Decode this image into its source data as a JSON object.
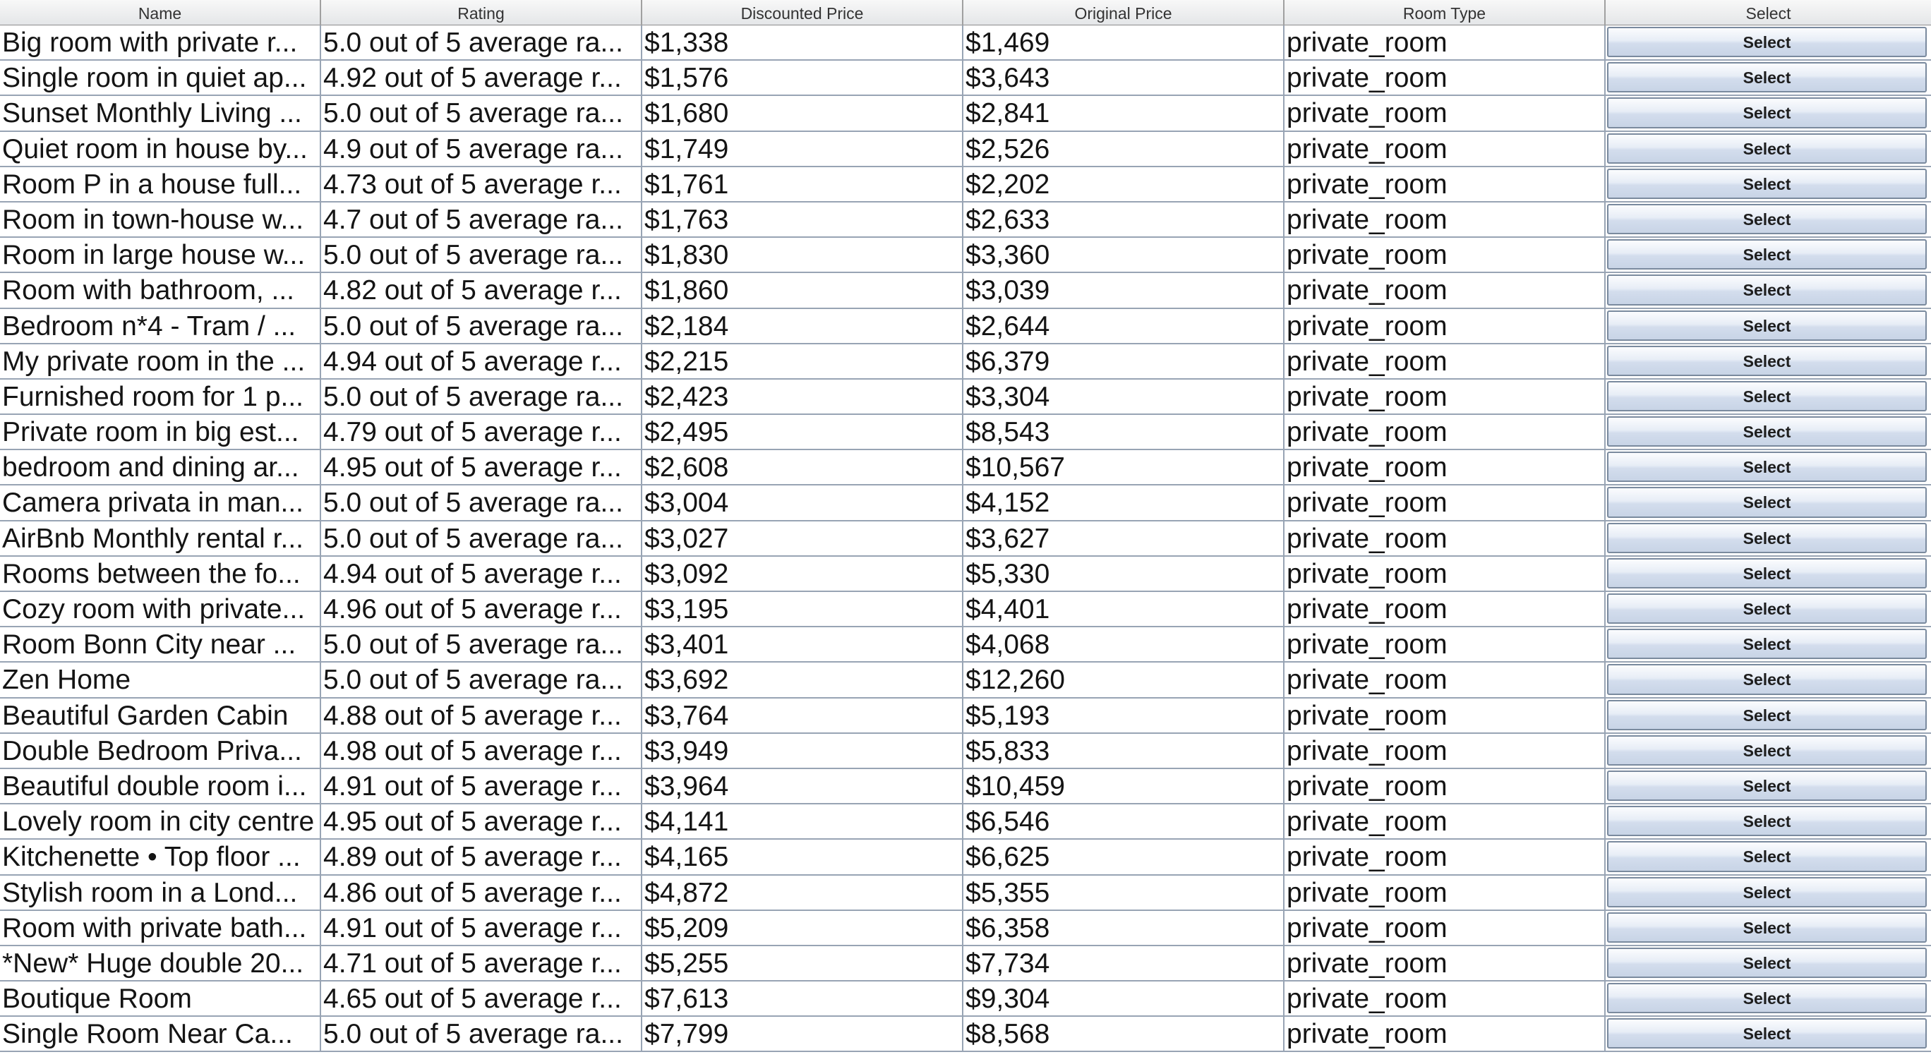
{
  "table": {
    "headers": [
      "Name",
      "Rating",
      "Discounted Price",
      "Original Price",
      "Room Type",
      "Select"
    ],
    "rows": [
      {
        "name": "Big room with private r...",
        "rating": "5.0 out of 5 average ra...",
        "discounted_price": "$1,338",
        "original_price": "$1,469",
        "room_type": "private_room",
        "select_label": "Select"
      },
      {
        "name": "Single room in quiet ap...",
        "rating": "4.92 out of 5 average r...",
        "discounted_price": "$1,576",
        "original_price": "$3,643",
        "room_type": "private_room",
        "select_label": "Select"
      },
      {
        "name": "Sunset Monthly Living ...",
        "rating": "5.0 out of 5 average ra...",
        "discounted_price": "$1,680",
        "original_price": "$2,841",
        "room_type": "private_room",
        "select_label": "Select"
      },
      {
        "name": "Quiet room in house by...",
        "rating": "4.9 out of 5 average ra...",
        "discounted_price": "$1,749",
        "original_price": "$2,526",
        "room_type": "private_room",
        "select_label": "Select"
      },
      {
        "name": "Room P in a house full...",
        "rating": "4.73 out of 5 average r...",
        "discounted_price": "$1,761",
        "original_price": "$2,202",
        "room_type": "private_room",
        "select_label": "Select"
      },
      {
        "name": "Room in town-house w...",
        "rating": "4.7 out of 5 average ra...",
        "discounted_price": "$1,763",
        "original_price": "$2,633",
        "room_type": "private_room",
        "select_label": "Select"
      },
      {
        "name": "Room in large house w...",
        "rating": "5.0 out of 5 average ra...",
        "discounted_price": "$1,830",
        "original_price": "$3,360",
        "room_type": "private_room",
        "select_label": "Select"
      },
      {
        "name": "Room  with bathroom, ...",
        "rating": "4.82 out of 5 average r...",
        "discounted_price": "$1,860",
        "original_price": "$3,039",
        "room_type": "private_room",
        "select_label": "Select"
      },
      {
        "name": "Bedroom n*4 - Tram / ...",
        "rating": "5.0 out of 5 average ra...",
        "discounted_price": "$2,184",
        "original_price": "$2,644",
        "room_type": "private_room",
        "select_label": "Select"
      },
      {
        "name": "My private room in the ...",
        "rating": "4.94 out of 5 average r...",
        "discounted_price": "$2,215",
        "original_price": "$6,379",
        "room_type": "private_room",
        "select_label": "Select"
      },
      {
        "name": "Furnished room for 1 p...",
        "rating": "5.0 out of 5 average ra...",
        "discounted_price": "$2,423",
        "original_price": "$3,304",
        "room_type": "private_room",
        "select_label": "Select"
      },
      {
        "name": "Private room in big est...",
        "rating": "4.79 out of 5 average r...",
        "discounted_price": "$2,495",
        "original_price": "$8,543",
        "room_type": "private_room",
        "select_label": "Select"
      },
      {
        "name": "bedroom and dining ar...",
        "rating": "4.95 out of 5 average r...",
        "discounted_price": "$2,608",
        "original_price": "$10,567",
        "room_type": "private_room",
        "select_label": "Select"
      },
      {
        "name": "Camera privata in man...",
        "rating": "5.0 out of 5 average ra...",
        "discounted_price": "$3,004",
        "original_price": "$4,152",
        "room_type": "private_room",
        "select_label": "Select"
      },
      {
        "name": "AirBnb Monthly rental r...",
        "rating": "5.0 out of 5 average ra...",
        "discounted_price": "$3,027",
        "original_price": "$3,627",
        "room_type": "private_room",
        "select_label": "Select"
      },
      {
        "name": "Rooms between the fo...",
        "rating": "4.94 out of 5 average r...",
        "discounted_price": "$3,092",
        "original_price": "$5,330",
        "room_type": "private_room",
        "select_label": "Select"
      },
      {
        "name": "Cozy room with private...",
        "rating": "4.96 out of 5 average r...",
        "discounted_price": "$3,195",
        "original_price": "$4,401",
        "room_type": "private_room",
        "select_label": "Select"
      },
      {
        "name": "Room Bonn City near ...",
        "rating": "5.0 out of 5 average ra...",
        "discounted_price": "$3,401",
        "original_price": "$4,068",
        "room_type": "private_room",
        "select_label": "Select"
      },
      {
        "name": "Zen Home",
        "rating": "5.0 out of 5 average ra...",
        "discounted_price": "$3,692",
        "original_price": "$12,260",
        "room_type": "private_room",
        "select_label": "Select"
      },
      {
        "name": "Beautiful Garden Cabin",
        "rating": "4.88 out of 5 average r...",
        "discounted_price": "$3,764",
        "original_price": "$5,193",
        "room_type": "private_room",
        "select_label": "Select"
      },
      {
        "name": "Double Bedroom Priva...",
        "rating": "4.98 out of 5 average r...",
        "discounted_price": "$3,949",
        "original_price": "$5,833",
        "room_type": "private_room",
        "select_label": "Select"
      },
      {
        "name": "Beautiful double room i...",
        "rating": "4.91 out of 5 average r...",
        "discounted_price": "$3,964",
        "original_price": "$10,459",
        "room_type": "private_room",
        "select_label": "Select"
      },
      {
        "name": "Lovely room in city centre",
        "rating": "4.95 out of 5 average r...",
        "discounted_price": "$4,141",
        "original_price": "$6,546",
        "room_type": "private_room",
        "select_label": "Select"
      },
      {
        "name": "Kitchenette • Top floor ...",
        "rating": "4.89 out of 5 average r...",
        "discounted_price": "$4,165",
        "original_price": "$6,625",
        "room_type": "private_room",
        "select_label": "Select"
      },
      {
        "name": "Stylish room in a Lond...",
        "rating": "4.86 out of 5 average r...",
        "discounted_price": "$4,872",
        "original_price": "$5,355",
        "room_type": "private_room",
        "select_label": "Select"
      },
      {
        "name": "Room with private bath...",
        "rating": "4.91 out of 5 average r...",
        "discounted_price": "$5,209",
        "original_price": "$6,358",
        "room_type": "private_room",
        "select_label": "Select"
      },
      {
        "name": "*New* Huge double 20...",
        "rating": "4.71 out of 5 average r...",
        "discounted_price": "$5,255",
        "original_price": "$7,734",
        "room_type": "private_room",
        "select_label": "Select"
      },
      {
        "name": "Boutique Room",
        "rating": "4.65 out of 5 average r...",
        "discounted_price": "$7,613",
        "original_price": "$9,304",
        "room_type": "private_room",
        "select_label": "Select"
      },
      {
        "name": "Single Room Near Ca...",
        "rating": "5.0 out of 5 average ra...",
        "discounted_price": "$7,799",
        "original_price": "$8,568",
        "room_type": "private_room",
        "select_label": "Select"
      }
    ]
  }
}
